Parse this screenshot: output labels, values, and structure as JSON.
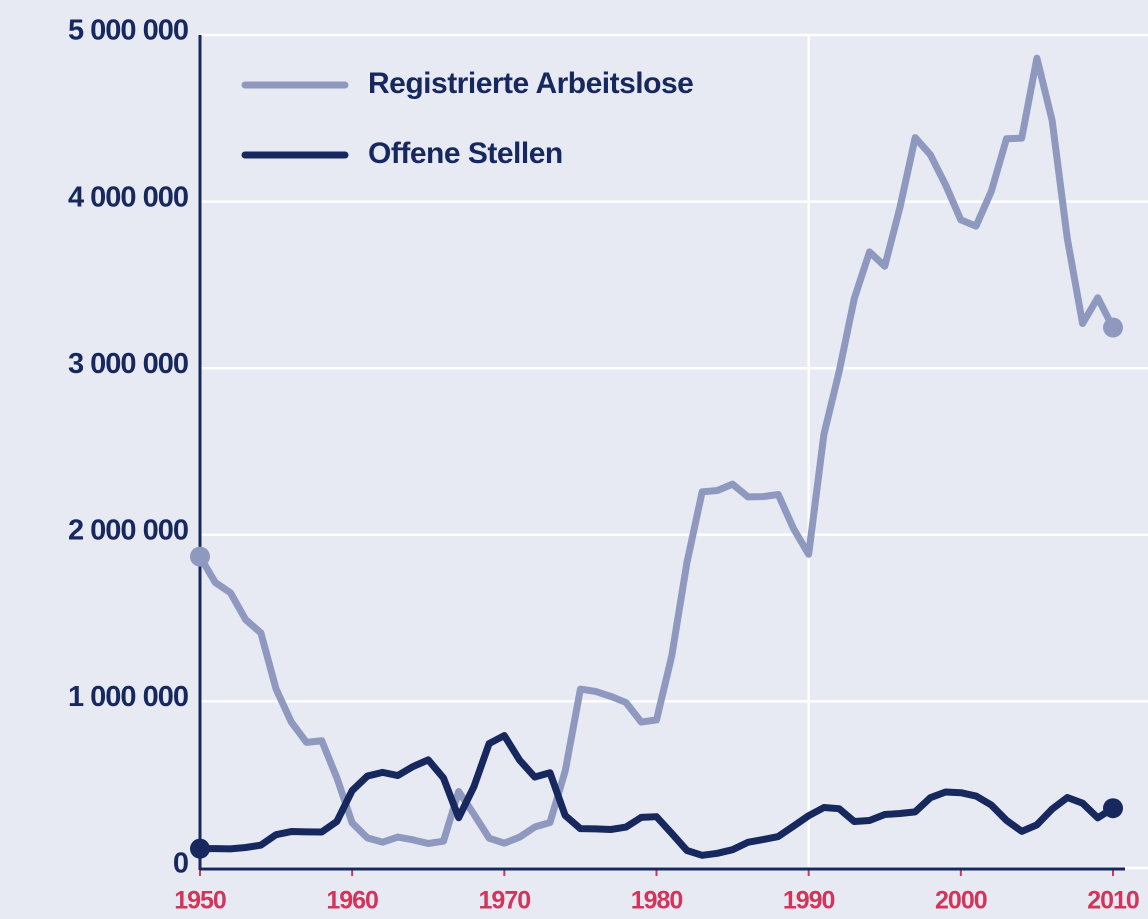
{
  "chart_data": {
    "type": "line",
    "x": [
      1950,
      1951,
      1952,
      1953,
      1954,
      1955,
      1956,
      1957,
      1958,
      1959,
      1960,
      1961,
      1962,
      1963,
      1964,
      1965,
      1966,
      1967,
      1968,
      1969,
      1970,
      1971,
      1972,
      1973,
      1974,
      1975,
      1976,
      1977,
      1978,
      1979,
      1980,
      1981,
      1982,
      1983,
      1984,
      1985,
      1986,
      1987,
      1988,
      1989,
      1990,
      1991,
      1992,
      1993,
      1994,
      1995,
      1996,
      1997,
      1998,
      1999,
      2000,
      2001,
      2002,
      2003,
      2004,
      2005,
      2006,
      2007,
      2008,
      2009,
      2010
    ],
    "series": [
      {
        "name": "Registrierte Arbeitslose",
        "color": "#8f99bf",
        "values": [
          1869000,
          1714000,
          1652000,
          1491000,
          1411000,
          1074000,
          876000,
          754000,
          764000,
          540000,
          271000,
          181000,
          155000,
          186000,
          169000,
          147000,
          161000,
          459000,
          323000,
          179000,
          149000,
          185000,
          246000,
          273000,
          582000,
          1074000,
          1060000,
          1030000,
          993000,
          876000,
          889000,
          1272000,
          1833000,
          2258000,
          2266000,
          2304000,
          2228000,
          2229000,
          2242000,
          2038000,
          1883000,
          2602000,
          2979000,
          3419000,
          3698000,
          3612000,
          3965000,
          4384000,
          4281000,
          4100000,
          3890000,
          3853000,
          4061000,
          4377000,
          4381000,
          4861000,
          4487000,
          3776000,
          3268000,
          3423000,
          3244000
        ]
      },
      {
        "name": "Offene Stellen",
        "color": "#17285e",
        "values": [
          116000,
          116000,
          115000,
          123000,
          137000,
          200000,
          219000,
          217000,
          216000,
          280000,
          465000,
          552000,
          574000,
          555000,
          609000,
          649000,
          540000,
          302000,
          488000,
          747000,
          795000,
          648000,
          546000,
          572000,
          315000,
          236000,
          235000,
          231000,
          246000,
          304000,
          308000,
          208000,
          105000,
          76000,
          88000,
          110000,
          154000,
          171000,
          189000,
          251000,
          314000,
          363000,
          356000,
          279000,
          285000,
          321000,
          327000,
          337000,
          422000,
          456000,
          452000,
          432000,
          378000,
          286000,
          220000,
          259000,
          354000,
          423000,
          389000,
          301000,
          359000
        ]
      }
    ],
    "xlim": [
      1950,
      2010
    ],
    "xticks": [
      1950,
      1960,
      1970,
      1980,
      1990,
      2000,
      2010
    ],
    "ylim": [
      0,
      5000000
    ],
    "yticks": [
      0,
      {
        "value": 1000000,
        "label": "1 000 000"
      },
      {
        "value": 2000000,
        "label": "2 000 000"
      },
      {
        "value": 3000000,
        "label": "3 000 000"
      },
      {
        "value": 4000000,
        "label": "4 000 000"
      },
      {
        "value": 5000000,
        "label": "5 000 000"
      }
    ],
    "grid": true,
    "xgrid_at": [
      1990
    ],
    "legend": "top-left",
    "background": "#e7eaf3"
  }
}
